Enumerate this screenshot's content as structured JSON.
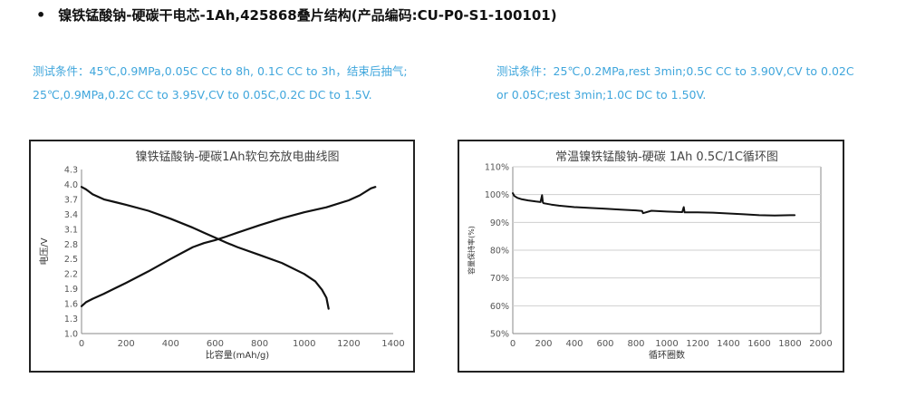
{
  "header": {
    "title": "镍铁锰酸钠-硬碳干电芯-1Ah,425868叠片结构(产品编码:CU-P0-S1-100101)"
  },
  "conditions_left": {
    "line1": "测试条件：45℃,0.9MPa,0.05C CC to 8h, 0.1C CC to 3h，结束后抽气;",
    "line2": "25℃,0.9MPa,0.2C CC to 3.95V,CV to 0.05C,0.2C DC to 1.5V."
  },
  "conditions_right": {
    "line1": "测试条件：25℃,0.2MPa,rest 3min;0.5C CC to 3.90V,CV to 0.02C",
    "line2": "or 0.05C;rest 3min;1.0C DC to 1.50V."
  },
  "chart_data": [
    {
      "type": "line",
      "title": "镍铁锰酸钠-硬碳1Ah软包充放电曲线图",
      "xlabel": "比容量(mAh/g)",
      "ylabel": "电压/V",
      "xlim": [
        0,
        1400
      ],
      "ylim": [
        1.0,
        4.3
      ],
      "xticks": [
        "0",
        "200",
        "400",
        "600",
        "800",
        "1000",
        "1200",
        "1400"
      ],
      "yticks": [
        "1.0",
        "1.3",
        "1.6",
        "1.9",
        "2.2",
        "2.5",
        "2.8",
        "3.1",
        "3.4",
        "3.7",
        "4.0",
        "4.3"
      ],
      "grid": false,
      "color": "#111111",
      "series": [
        {
          "x": [
            0,
            20,
            50,
            100,
            200,
            300,
            400,
            450,
            500,
            550,
            600,
            650,
            700,
            800,
            900,
            1000,
            1100,
            1200,
            1250,
            1300,
            1320
          ],
          "y": [
            1.55,
            1.63,
            1.7,
            1.8,
            2.02,
            2.25,
            2.5,
            2.62,
            2.74,
            2.82,
            2.88,
            2.95,
            3.03,
            3.18,
            3.32,
            3.44,
            3.54,
            3.68,
            3.78,
            3.92,
            3.95
          ]
        },
        {
          "x": [
            0,
            20,
            50,
            100,
            200,
            300,
            400,
            500,
            550,
            600,
            650,
            700,
            800,
            900,
            1000,
            1050,
            1080,
            1100,
            1110
          ],
          "y": [
            3.95,
            3.9,
            3.8,
            3.7,
            3.59,
            3.47,
            3.31,
            3.13,
            3.03,
            2.93,
            2.83,
            2.74,
            2.58,
            2.42,
            2.2,
            2.05,
            1.88,
            1.72,
            1.5
          ]
        }
      ]
    },
    {
      "type": "line",
      "title": "常温镍铁锰酸钠-硬碳 1Ah 0.5C/1C循环图",
      "xlabel": "循环圈数",
      "ylabel": "容量保持率(%)",
      "xlim": [
        0,
        2000
      ],
      "ylim": [
        50,
        110
      ],
      "xticks": [
        "0",
        "200",
        "400",
        "600",
        "800",
        "1000",
        "1200",
        "1400",
        "1600",
        "1800",
        "2000"
      ],
      "yticks": [
        "50%",
        "60%",
        "70%",
        "80%",
        "90%",
        "100%",
        "110%"
      ],
      "grid": true,
      "color": "#111111",
      "series": [
        {
          "x": [
            0,
            10,
            30,
            60,
            100,
            150,
            180,
            190,
            195,
            200,
            250,
            300,
            400,
            500,
            600,
            700,
            800,
            840,
            845,
            900,
            1000,
            1100,
            1110,
            1115,
            1200,
            1300,
            1400,
            1500,
            1600,
            1700,
            1800,
            1830
          ],
          "y": [
            100.5,
            99.5,
            98.8,
            98.3,
            97.9,
            97.5,
            97.3,
            99.8,
            97.2,
            96.9,
            96.4,
            96.0,
            95.5,
            95.2,
            94.9,
            94.6,
            94.3,
            94.1,
            93.3,
            94.2,
            93.9,
            93.7,
            95.5,
            93.6,
            93.6,
            93.5,
            93.2,
            92.9,
            92.6,
            92.5,
            92.6,
            92.6
          ]
        }
      ]
    }
  ]
}
